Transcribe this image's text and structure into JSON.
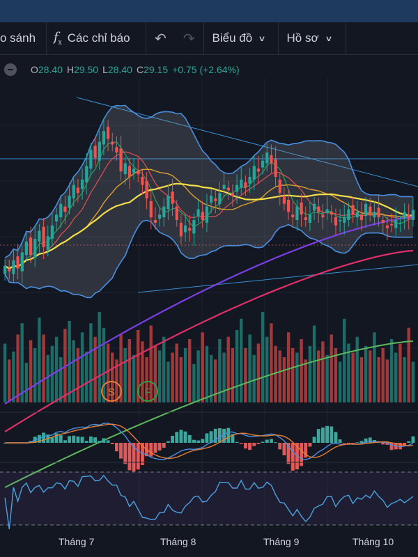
{
  "toolbar": {
    "compare_label": "o sánh",
    "indicators_label": "Các chỉ báo",
    "chart_label": "Biểu đồ",
    "profile_label": "Hồ sơ"
  },
  "legend": {
    "o_label": "O",
    "o_value": "28.40",
    "h_label": "H",
    "h_value": "29.50",
    "l_label": "L",
    "l_value": "28.40",
    "c_label": "C",
    "c_value": "29.15",
    "change": "+0.75 (+2.64%)"
  },
  "markers": {
    "s": "S",
    "f": "F"
  },
  "x_axis": [
    "Tháng 7",
    "Tháng 8",
    "Tháng 9",
    "Tháng 10"
  ],
  "colors": {
    "up": "#26a69a",
    "down": "#ef5350",
    "background": "#131722"
  },
  "chart_data": {
    "type": "line",
    "close": [
      25.0,
      24.6,
      25.4,
      24.8,
      26.0,
      26.8,
      25.8,
      27.0,
      27.6,
      26.4,
      27.2,
      28.0,
      28.8,
      29.6,
      29.0,
      30.2,
      31.0,
      30.4,
      31.4,
      32.4,
      33.6,
      33.0,
      34.2,
      35.0,
      34.4,
      34.0,
      33.4,
      32.0,
      32.6,
      31.6,
      32.2,
      31.8,
      31.0,
      30.0,
      28.6,
      28.2,
      28.8,
      29.4,
      30.2,
      29.6,
      28.4,
      27.2,
      28.0,
      27.6,
      28.4,
      29.2,
      28.4,
      29.4,
      30.2,
      29.8,
      30.4,
      31.0,
      30.6,
      30.2,
      31.0,
      31.4,
      30.8,
      31.6,
      32.4,
      32.0,
      32.8,
      33.4,
      32.6,
      31.6,
      30.4,
      29.6,
      29.0,
      28.6,
      29.4,
      28.8,
      28.4,
      28.8,
      29.6,
      29.0,
      28.6,
      29.2,
      28.8,
      28.0,
      28.4,
      28.6,
      29.2,
      28.8,
      29.0,
      28.4,
      29.6,
      28.8,
      29.0,
      28.6,
      28.2,
      27.8,
      28.0,
      28.4,
      28.2,
      29.0,
      28.6,
      29.15
    ],
    "volume": [
      52,
      38,
      45,
      60,
      70,
      35,
      55,
      48,
      75,
      60,
      42,
      50,
      58,
      40,
      65,
      72,
      55,
      48,
      62,
      45,
      70,
      58,
      80,
      66,
      52,
      44,
      38,
      60,
      48,
      56,
      42,
      64,
      54,
      40,
      68,
      50,
      46,
      58,
      36,
      44,
      52,
      40,
      48,
      56,
      34,
      46,
      62,
      50,
      42,
      38,
      56,
      44,
      58,
      48,
      64,
      74,
      48,
      60,
      42,
      52,
      80,
      58,
      70,
      50,
      46,
      40,
      62,
      48,
      44,
      56,
      38,
      50,
      68,
      46,
      54,
      42,
      60,
      48,
      36,
      74,
      52,
      44,
      58,
      40,
      50,
      46,
      62,
      40,
      48,
      38,
      56,
      44,
      52,
      40,
      66,
      36
    ]
  }
}
